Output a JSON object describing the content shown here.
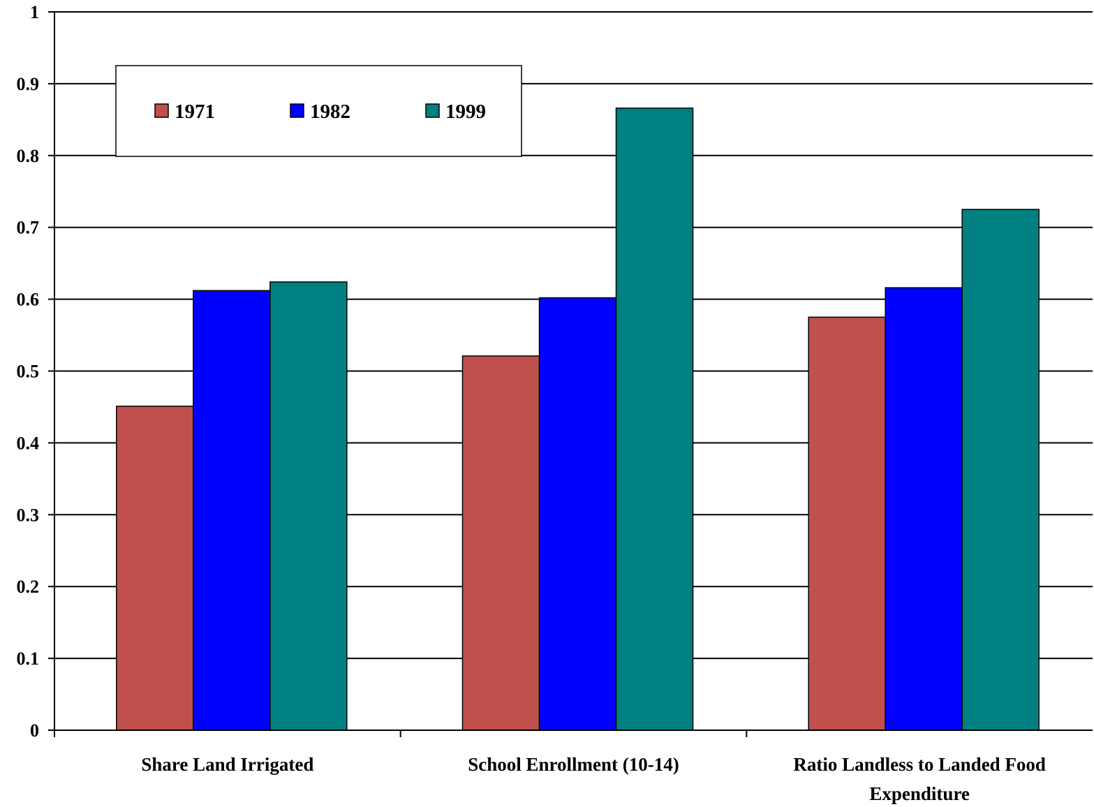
{
  "chart_data": {
    "type": "bar",
    "title": "",
    "xlabel": "",
    "ylabel": "",
    "categories": [
      [
        "Share Land Irrigated"
      ],
      [
        "School Enrollment (10-14)"
      ],
      [
        "Ratio Landless to Landed Food",
        "Expenditure"
      ]
    ],
    "series": [
      {
        "name": "1971",
        "color": "#C0504D",
        "values": [
          0.451,
          0.521,
          0.575
        ]
      },
      {
        "name": "1982",
        "color": "#0000FF",
        "values": [
          0.612,
          0.602,
          0.616
        ]
      },
      {
        "name": "1999",
        "color": "#008080",
        "values": [
          0.624,
          0.866,
          0.725
        ]
      }
    ],
    "ylim": [
      0,
      1
    ],
    "yticks": [
      "0",
      "0.1",
      "0.2",
      "0.3",
      "0.4",
      "0.5",
      "0.6",
      "0.7",
      "0.8",
      "0.9",
      "1"
    ],
    "grid": true,
    "legend_position": "top-left"
  }
}
